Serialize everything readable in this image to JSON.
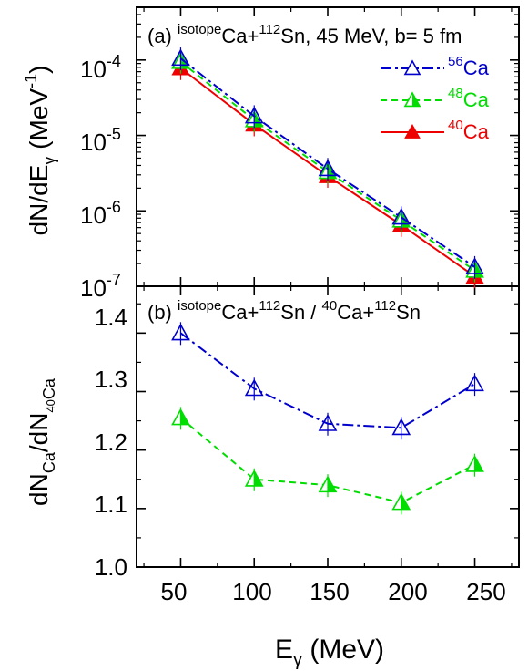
{
  "chart_data": [
    {
      "type": "line",
      "panel": "(a)",
      "title": "(a) isotopeCa+112Sn, 45 MeV, b= 5 fm",
      "title_parts": {
        "panel": "(a) ",
        "sup1": "isotope",
        "mid": "Ca+",
        "sup2": "112",
        "rest": "Sn, 45 MeV, b= 5 fm"
      },
      "ylabel": "dN/dEγ (MeV-1)",
      "ylabel_parts": {
        "main": "dN/dE",
        "sub": "γ",
        "rest": " (MeV",
        "sup": "-1",
        "end": ")"
      },
      "yscale": "log",
      "ylim": [
        1e-07,
        0.0005
      ],
      "ytick_labels": [
        {
          "base": "10",
          "exp": "-7"
        },
        {
          "base": "10",
          "exp": "-6"
        },
        {
          "base": "10",
          "exp": "-5"
        },
        {
          "base": "10",
          "exp": "-4"
        }
      ],
      "x": [
        50,
        100,
        150,
        200,
        250
      ],
      "xlim": [
        20,
        280
      ],
      "legend_position": "top-right",
      "series": [
        {
          "name": "56Ca",
          "name_sup": "56",
          "name_base": "Ca",
          "color": "#0000cc",
          "dash": "12,4,3,4",
          "marker": "open-triangle",
          "values": [
            0.000105,
            1.8e-05,
            3.6e-06,
            8.2e-07,
            1.8e-07
          ]
        },
        {
          "name": "48Ca",
          "name_sup": "48",
          "name_base": "Ca",
          "color": "#00dd00",
          "dash": "7,5",
          "marker": "half-triangle",
          "values": [
            9.5e-05,
            1.6e-05,
            3.3e-06,
            7.5e-07,
            1.62e-07
          ]
        },
        {
          "name": "40Ca",
          "name_sup": "40",
          "name_base": "Ca",
          "color": "#ee0000",
          "dash": "",
          "marker": "filled-triangle",
          "values": [
            7.8e-05,
            1.4e-05,
            2.9e-06,
            6.5e-07,
            1.35e-07
          ]
        }
      ]
    },
    {
      "type": "line",
      "panel": "(b)",
      "title": "(b) isotopeCa+112Sn / 40Ca+112Sn",
      "title_parts": {
        "panel": "(b) ",
        "sup1": "isotope",
        "mid1": "Ca+",
        "sup2": "112",
        "mid2": "Sn / ",
        "sup3": "40",
        "mid3": "Ca+",
        "sup4": "112",
        "rest": "Sn"
      },
      "ylabel": "dNCa/dN40Ca",
      "ylabel_parts": {
        "a": "dN",
        "sub1": "Ca",
        "b": "/dN",
        "sub2": "40",
        "sub2b": "Ca"
      },
      "ylim": [
        1.0,
        1.48
      ],
      "yticks": [
        "1.0",
        "1.1",
        "1.2",
        "1.3",
        "1.4"
      ],
      "xlabel": "Eγ (MeV)",
      "xlabel_parts": {
        "main": "E",
        "sub": "γ",
        "rest": " (MeV)"
      },
      "xticks": [
        "50",
        "100",
        "150",
        "200",
        "250"
      ],
      "x": [
        50,
        100,
        150,
        200,
        250
      ],
      "xlim": [
        20,
        280
      ],
      "series": [
        {
          "name": "56Ca",
          "color": "#0000cc",
          "dash": "12,4,3,4",
          "marker": "open-triangle",
          "values": [
            1.4,
            1.305,
            1.245,
            1.238,
            1.313
          ]
        },
        {
          "name": "48Ca",
          "color": "#00dd00",
          "dash": "7,5",
          "marker": "half-triangle",
          "values": [
            1.255,
            1.15,
            1.14,
            1.11,
            1.175
          ]
        }
      ]
    }
  ]
}
